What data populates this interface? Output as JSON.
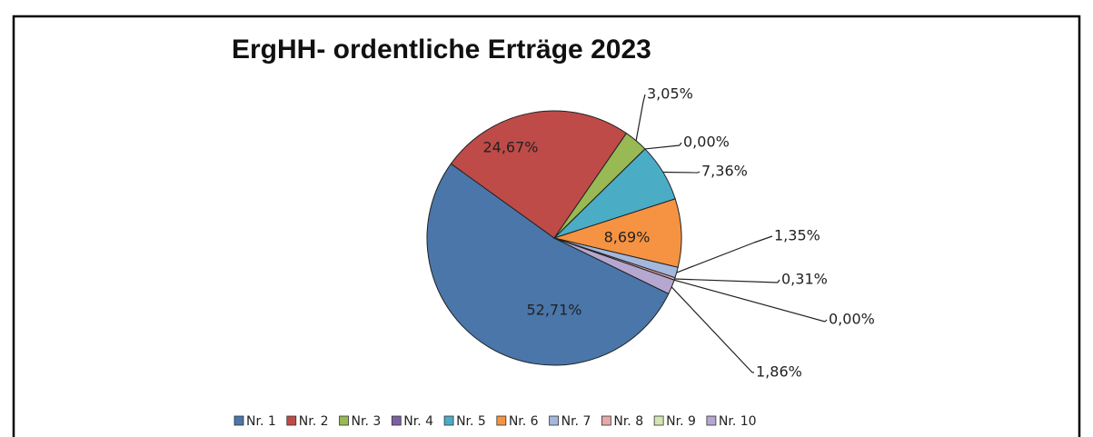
{
  "chart_data": {
    "type": "pie",
    "title": "ErgHH- ordentliche Erträge 2023",
    "categories": [
      "Nr. 1",
      "Nr. 2",
      "Nr. 3",
      "Nr. 4",
      "Nr. 5",
      "Nr. 6",
      "Nr. 7",
      "Nr. 8",
      "Nr. 9",
      "Nr. 10"
    ],
    "values": [
      52.71,
      24.67,
      3.05,
      0.0,
      7.36,
      8.69,
      1.35,
      0.31,
      0.0,
      1.86
    ],
    "value_labels": [
      "52,71%",
      "24,67%",
      "3,05%",
      "0,00%",
      "7,36%",
      "8,69%",
      "1,35%",
      "0,31%",
      "0,00%",
      "1,86%"
    ],
    "colors": [
      "#4a76aa",
      "#be4b48",
      "#98b954",
      "#7d60a0",
      "#4bacc6",
      "#f59342",
      "#a4b7dc",
      "#e6a9a8",
      "#d5e5b2",
      "#b5a7cf"
    ],
    "legend": "bottom"
  }
}
